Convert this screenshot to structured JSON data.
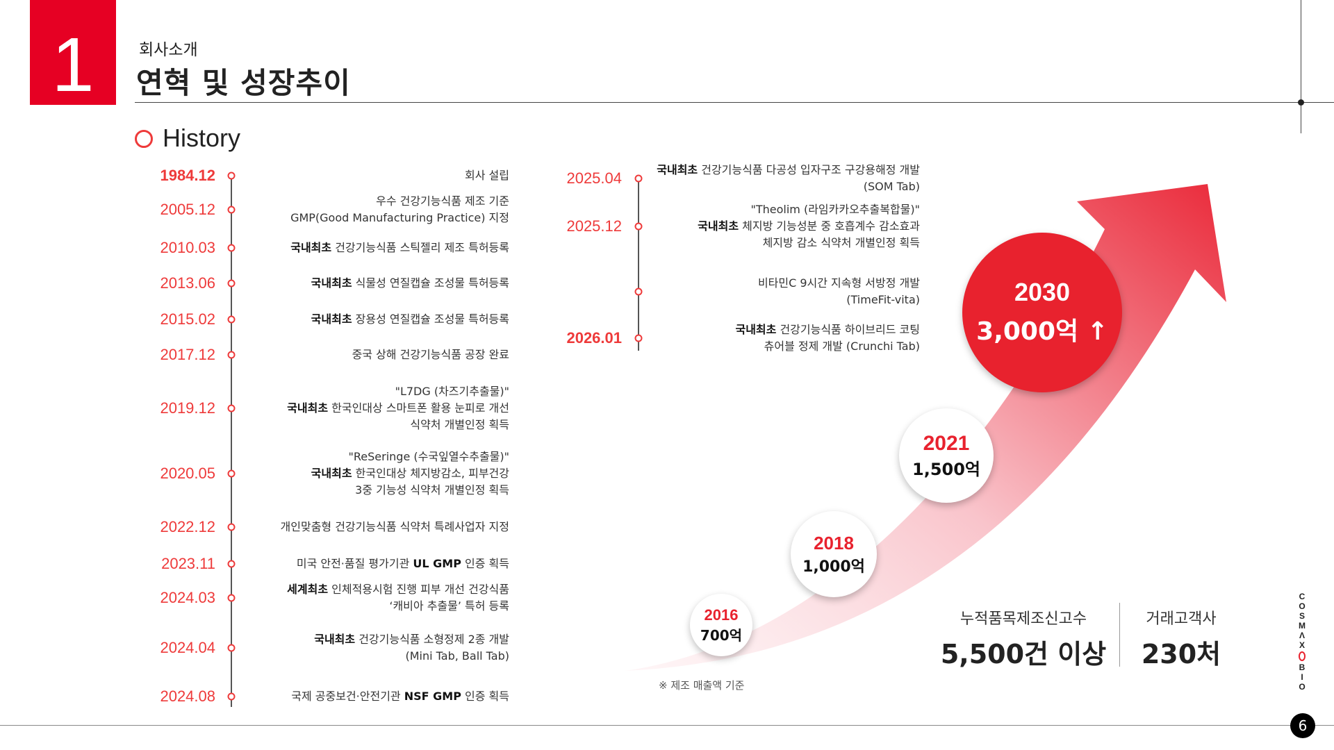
{
  "header": {
    "section_number": "1",
    "subtitle": "회사소개",
    "title": "연혁 및 성장추이"
  },
  "history": {
    "heading": "History",
    "left": [
      {
        "date": "1984.12",
        "bold": "",
        "text": "회사 설립",
        "bold_date": true
      },
      {
        "date": "2005.12",
        "lines": [
          "우수 건강기능식품 제조 기준",
          "GMP(Good Manufacturing Practice) 지정"
        ]
      },
      {
        "date": "2010.03",
        "bold": "국내최초",
        "text": " 건강기능식품 스틱젤리 제조 특허등록"
      },
      {
        "date": "2013.06",
        "bold": "국내최초",
        "text": " 식물성 연질캡슐 조성물 특허등록"
      },
      {
        "date": "2015.02",
        "bold": "국내최초",
        "text": " 장용성 연질캡슐 조성물 특허등록"
      },
      {
        "date": "2017.12",
        "bold": "",
        "text": "중국 상해 건강기능식품 공장 완료"
      },
      {
        "date": "2019.12",
        "pre": "\"L7DG (차즈기추출물)\"",
        "bold": "국내최초",
        "text": " 한국인대상 스마트폰 활용 눈피로 개선",
        "post": "식약처 개별인정 획득"
      },
      {
        "date": "2020.05",
        "pre": "\"ReSeringe (수국잎열수추출물)\"",
        "bold": "국내최초",
        "text": " 한국인대상 체지방감소, 피부건강",
        "post": "3중 기능성 식약처 개별인정 획득"
      },
      {
        "date": "2022.12",
        "bold": "",
        "text": "개인맞춤형 건강기능식품 식약처 특례사업자 지정"
      },
      {
        "date": "2023.11",
        "bold": "",
        "text": "미국 안전·품질 평가기관 ",
        "bold2": "UL GMP",
        "text2": " 인증 획득"
      },
      {
        "date": "2024.03",
        "bold": "세계최초",
        "text": " 인체적용시험 진행 피부 개선 건강식품",
        "post": "‘캐비아 추출물’ 특허 등록"
      },
      {
        "date": "2024.04",
        "bold": "국내최초",
        "text": " 건강기능식품 소형정제 2종 개발",
        "post": "(Mini Tab, Ball Tab)"
      },
      {
        "date": "2024.08",
        "bold": "",
        "text": "국제 공중보건·안전기관 ",
        "bold2": "NSF GMP",
        "text2": " 인증 획득"
      }
    ],
    "right": [
      {
        "date": "2025.04",
        "bold": "국내최초",
        "text": " 건강기능식품 다공성 입자구조 구강용해정 개발",
        "post": "(SOM Tab)"
      },
      {
        "date": "2025.12",
        "pre": "\"Theolim (라임카카오추출복합물)\"",
        "bold": "국내최초",
        "text": " 체지방 기능성분 중 호흡계수 감소효과",
        "post": "체지방 감소 식약처 개별인정 획득"
      },
      {
        "date": "",
        "bold": "",
        "text": "비타민C 9시간 지속형 서방정 개발",
        "post": "(TimeFit-vita)"
      },
      {
        "date": "2026.01",
        "bold": "국내최초",
        "text": " 건강기능식품 하이브리드 코팅",
        "post": "츄어블 정제 개발 (Crunchi Tab)",
        "bold_date": true
      }
    ]
  },
  "growth": {
    "milestones": [
      {
        "year": "2016",
        "value": "700억"
      },
      {
        "year": "2018",
        "value": "1,000억"
      },
      {
        "year": "2021",
        "value": "1,500억"
      },
      {
        "year": "2030",
        "value": "3,000억 ↑"
      }
    ],
    "note": "※ 제조 매출액 기준",
    "accent": "#e8222e"
  },
  "stats": [
    {
      "label": "누적품목제조신고수",
      "value": "5,500건 이상"
    },
    {
      "label": "거래고객사",
      "value": "230처"
    }
  ],
  "footer": {
    "brand": [
      "C",
      "O",
      "S",
      "M",
      "Λ",
      "X",
      "B",
      "I",
      "O"
    ],
    "page": "6"
  }
}
